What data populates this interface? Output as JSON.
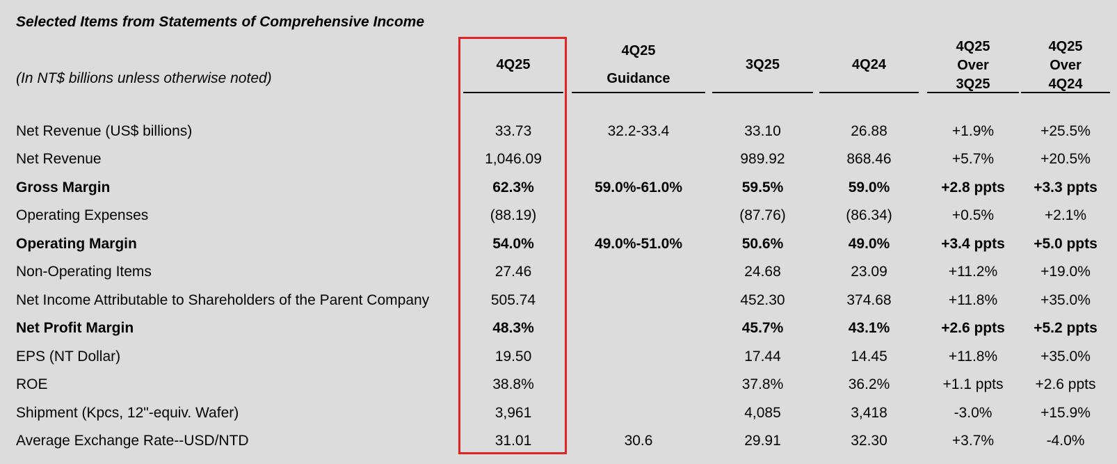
{
  "title": "Selected Items from Statements of Comprehensive Income",
  "subtitle": "(In NT$ billions unless otherwise noted)",
  "headers": [
    {
      "lines": [
        "4Q25"
      ]
    },
    {
      "lines": [
        "4Q25",
        "Guidance"
      ]
    },
    {
      "lines": [
        "3Q25"
      ]
    },
    {
      "lines": [
        "4Q24"
      ]
    },
    {
      "lines": [
        "4Q25",
        "Over",
        "3Q25"
      ]
    },
    {
      "lines": [
        "4Q25",
        "Over",
        "4Q24"
      ]
    }
  ],
  "highlight_color": "#e02424",
  "rows": [
    {
      "label": "Net Revenue (US$ billions)",
      "bold": false,
      "cells": [
        "33.73",
        "32.2-33.4",
        "33.10",
        "26.88",
        "+1.9%",
        "+25.5%"
      ]
    },
    {
      "label": "Net Revenue",
      "bold": false,
      "cells": [
        "1,046.09",
        "",
        "989.92",
        "868.46",
        "+5.7%",
        "+20.5%"
      ]
    },
    {
      "label": "Gross Margin",
      "bold": true,
      "cells": [
        "62.3%",
        "59.0%-61.0%",
        "59.5%",
        "59.0%",
        "+2.8 ppts",
        "+3.3 ppts"
      ]
    },
    {
      "label": "Operating Expenses",
      "bold": false,
      "cells": [
        "(88.19)",
        "",
        "(87.76)",
        "(86.34)",
        "+0.5%",
        "+2.1%"
      ]
    },
    {
      "label": "Operating Margin",
      "bold": true,
      "cells": [
        "54.0%",
        "49.0%-51.0%",
        "50.6%",
        "49.0%",
        "+3.4 ppts",
        "+5.0 ppts"
      ]
    },
    {
      "label": "Non-Operating Items",
      "bold": false,
      "cells": [
        "27.46",
        "",
        "24.68",
        "23.09",
        "+11.2%",
        "+19.0%"
      ]
    },
    {
      "label": "Net Income Attributable to Shareholders of the Parent Company",
      "bold": false,
      "cells": [
        "505.74",
        "",
        "452.30",
        "374.68",
        "+11.8%",
        "+35.0%"
      ]
    },
    {
      "label": "Net Profit Margin",
      "bold": true,
      "cells": [
        "48.3%",
        "",
        "45.7%",
        "43.1%",
        "+2.6 ppts",
        "+5.2 ppts"
      ]
    },
    {
      "label": "EPS (NT Dollar)",
      "bold": false,
      "cells": [
        "19.50",
        "",
        "17.44",
        "14.45",
        "+11.8%",
        "+35.0%"
      ]
    },
    {
      "label": "ROE",
      "bold": false,
      "cells": [
        "38.8%",
        "",
        "37.8%",
        "36.2%",
        "+1.1 ppts",
        "+2.6 ppts"
      ]
    },
    {
      "label": "Shipment (Kpcs, 12\"-equiv. Wafer)",
      "bold": false,
      "cells": [
        "3,961",
        "",
        "4,085",
        "3,418",
        "-3.0%",
        "+15.9%"
      ]
    },
    {
      "label": "Average Exchange Rate--USD/NTD",
      "bold": false,
      "cells": [
        "31.01",
        "30.6",
        "29.91",
        "32.30",
        "+3.7%",
        "-4.0%"
      ]
    }
  ]
}
